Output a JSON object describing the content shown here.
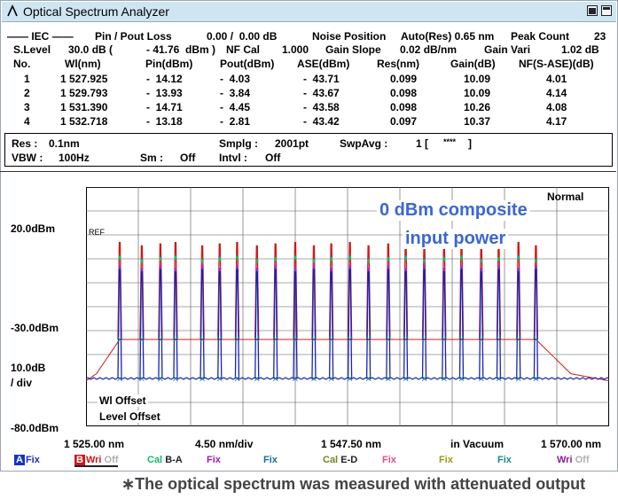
{
  "window": {
    "title": "Optical Spectrum Analyzer"
  },
  "summary": {
    "iec": "IEC",
    "pin_pout_loss_label": "Pin / Pout Loss",
    "pin_pout_loss_value": "0.00 /  0.00 dB",
    "noise_position_label": "Noise Position",
    "noise_position_value": "Auto(Res) 0.65 nm",
    "peak_count_label": "Peak Count",
    "peak_count_value": "23",
    "slevel_label": "S.Level",
    "slevel_value": "30.0 dB (",
    "slevel_sub": "- 41.76  dBm )",
    "nf_cal_label": "NF Cal",
    "nf_cal_value": "1.000",
    "gain_slope_label": "Gain Slope",
    "gain_slope_value": "0.02 dB/nm",
    "gain_vari_label": "Gain Vari",
    "gain_vari_value": "1.02 dB"
  },
  "table": {
    "headers": [
      "No.",
      "Wl(nm)",
      "Pin(dBm)",
      "Pout(dBm)",
      "ASE(dBm)",
      "Res(nm)",
      "Gain(dB)",
      "NF(S-ASE)(dB)"
    ],
    "rows": [
      [
        "1",
        "1 527.925",
        "-  14.12",
        "-  4.03",
        "-  43.71",
        "0.099",
        "10.09",
        "4.01"
      ],
      [
        "2",
        "1 529.793",
        "-  13.93",
        "-  3.84",
        "-  43.67",
        "0.098",
        "10.09",
        "4.14"
      ],
      [
        "3",
        "1 531.390",
        "-  14.71",
        "-  4.45",
        "-  43.58",
        "0.098",
        "10.26",
        "4.08"
      ],
      [
        "4",
        "1 532.718",
        "-  13.18",
        "-  2.81",
        "-  43.42",
        "0.097",
        "10.37",
        "4.17"
      ]
    ]
  },
  "settings": {
    "res_label": "Res :",
    "res_value": "0.1nm",
    "vbw_label": "VBW :",
    "vbw_value": "100Hz",
    "smplg_label": "Smplg :",
    "smplg_value": "2001pt",
    "sm_label": "Sm :",
    "sm_value": "Off",
    "swpavg_label": "SwpAvg :",
    "swpavg_value": "1 [",
    "swpavg_stars": "****",
    "swpavg_close": "]",
    "intvl_label": "Intvl :",
    "intvl_value": "Off"
  },
  "chart_data": {
    "type": "line",
    "mode_label": "Normal",
    "ref_label": "REF",
    "annotation_line1": "0 dBm composite",
    "annotation_line2": "input power",
    "y_ref_label": "20.0dBm",
    "y_mid_label": "-30.0dBm",
    "y_scale_label": "10.0dB",
    "y_scale_unit": "/ div",
    "y_bottom_label": "-80.0dBm",
    "wl_offset_label": "Wl Offset",
    "level_offset_label": "Level Offset",
    "x_start_label": "1 525.00 nm",
    "x_div_label": "4.50 nm/div",
    "x_center_label": "1 547.50 nm",
    "x_medium_label": "in Vacuum",
    "x_stop_label": "1 570.00 nm",
    "xlim": [
      1525.0,
      1570.0
    ],
    "ylim": [
      -80.0,
      20.0
    ],
    "channels_nm": [
      1527.9,
      1529.8,
      1531.4,
      1532.7,
      1535.0,
      1536.5,
      1538.0,
      1539.7,
      1541.3,
      1543.0,
      1544.6,
      1546.1,
      1547.7,
      1549.3,
      1551.0,
      1552.5,
      1554.1,
      1555.8,
      1557.3,
      1559.0,
      1560.5,
      1562.2,
      1563.7
    ],
    "series": [
      {
        "color": "#d01818",
        "peak_dbm": -4.0,
        "floor_dbm": -43.7
      },
      {
        "color": "#1822b4",
        "peak_dbm": -14.0,
        "floor_dbm": -60.0
      }
    ]
  },
  "traces": [
    {
      "badge": "A",
      "badge_color": "#1830c8",
      "label": "Fix",
      "color": "#1830c8"
    },
    {
      "badge": "B",
      "badge_color": "#d01818",
      "label": "Wri",
      "sub": "Off",
      "color": "#d01818"
    },
    {
      "label": "Cal",
      "sub": "B-A",
      "color": "#12b86a"
    },
    {
      "label": "Fix",
      "color": "#9a1eb0"
    },
    {
      "label": "Fix",
      "color": "#1a6aa8"
    },
    {
      "label": "Cal",
      "sub": "E-D",
      "color": "#6f8a1a"
    },
    {
      "label": "Fix",
      "color": "#e0508a"
    },
    {
      "label": "Fix",
      "color": "#9a9a12"
    },
    {
      "label": "Fix",
      "color": "#1a8a8a"
    },
    {
      "label": "Wri",
      "sub": "Off",
      "color": "#8a1e9a"
    }
  ],
  "caption": "∗The optical spectrum was measured with attenuated output"
}
